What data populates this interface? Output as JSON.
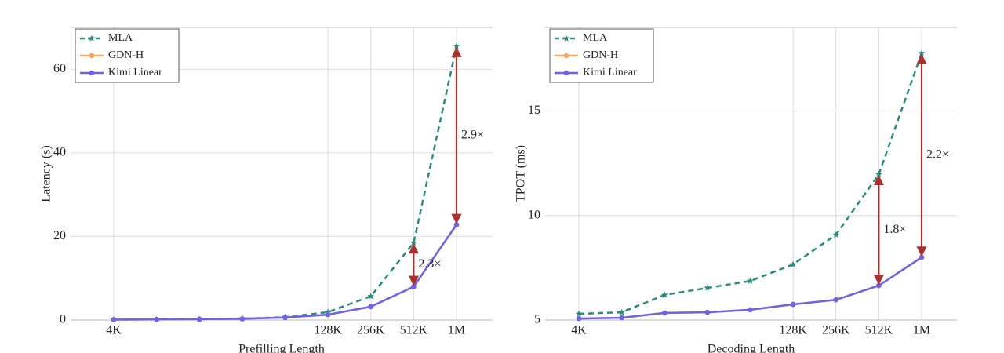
{
  "chart_data": [
    {
      "type": "line",
      "xlabel": "Prefilling Length",
      "ylabel": "Latency (s)",
      "categories": [
        "4K",
        null,
        null,
        null,
        null,
        "128K",
        "256K",
        "512K",
        "1M"
      ],
      "series": [
        {
          "name": "MLA",
          "color": "#2f8a7c",
          "dashed": true,
          "marker": "star",
          "values": [
            0.1,
            0.15,
            0.2,
            0.35,
            0.7,
            1.9,
            5.7,
            18.5,
            65.5
          ]
        },
        {
          "name": "GDN-H",
          "color": "#f0a868",
          "dashed": false,
          "marker": "circle",
          "values": [
            0.1,
            0.15,
            0.2,
            0.3,
            0.6,
            1.3,
            3.2,
            8,
            22.8
          ]
        },
        {
          "name": "Kimi Linear",
          "color": "#6f63e0",
          "dashed": false,
          "marker": "circle",
          "values": [
            0.1,
            0.15,
            0.2,
            0.3,
            0.6,
            1.3,
            3.2,
            8,
            22.8
          ]
        }
      ],
      "annotations": [
        {
          "text": "2.9×",
          "at": "1M"
        },
        {
          "text": "2.3×",
          "at": "512K"
        }
      ],
      "ylim": [
        0,
        70
      ],
      "yticks": [
        0,
        20,
        40,
        60
      ],
      "grid": true,
      "legend": "upper left"
    },
    {
      "type": "line",
      "xlabel": "Decoding Length",
      "ylabel": "TPOT (ms)",
      "categories": [
        "4K",
        null,
        null,
        null,
        null,
        "128K",
        "256K",
        "512K",
        "1M"
      ],
      "series": [
        {
          "name": "MLA",
          "color": "#2f8a7c",
          "dashed": true,
          "marker": "star",
          "values": [
            5.3,
            5.37,
            6.2,
            6.54,
            6.87,
            7.66,
            9.08,
            11.97,
            17.77
          ]
        },
        {
          "name": "GDN-H",
          "color": "#f0a868",
          "dashed": false,
          "marker": "circle",
          "values": [
            5.07,
            5.11,
            5.34,
            5.37,
            5.49,
            5.75,
            5.97,
            6.65,
            8.0
          ]
        },
        {
          "name": "Kimi Linear",
          "color": "#6f63e0",
          "dashed": false,
          "marker": "circle",
          "values": [
            5.07,
            5.11,
            5.34,
            5.37,
            5.49,
            5.75,
            5.97,
            6.65,
            8.0
          ]
        }
      ],
      "annotations": [
        {
          "text": "2.2×",
          "at": "1M"
        },
        {
          "text": "1.8×",
          "at": "512K"
        }
      ],
      "ylim": [
        5,
        19
      ],
      "yticks": [
        5,
        10,
        15
      ],
      "grid": true,
      "legend": "upper left"
    }
  ]
}
